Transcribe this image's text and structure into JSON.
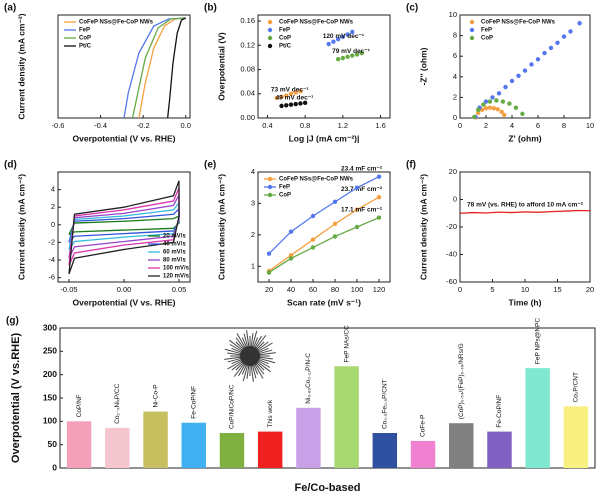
{
  "chart_data": [
    {
      "type": "line",
      "panel": "(a)",
      "xlabel": "Overpotential (V vs. RHE)",
      "ylabel": "Current density (mA cm⁻²)",
      "xlim": [
        -0.6,
        0.02
      ],
      "ylim": [
        -100,
        3
      ],
      "xticks": [
        -0.6,
        -0.4,
        -0.2,
        {
          "value": 0,
          "label": "0.0"
        }
      ],
      "legend": "upper left",
      "series": [
        {
          "name": "CoFeP NSs@Fe-CoP NWs",
          "color": "#f5a040",
          "x": [
            0,
            -0.05,
            -0.1,
            -0.15,
            -0.19,
            -0.22
          ],
          "values": [
            0,
            -1,
            -8,
            -30,
            -65,
            -100
          ]
        },
        {
          "name": "FeP",
          "color": "#5577ee",
          "x": [
            0,
            -0.08,
            -0.15,
            -0.22,
            -0.27,
            -0.29
          ],
          "values": [
            0,
            -1,
            -8,
            -35,
            -75,
            -100
          ]
        },
        {
          "name": "CoP",
          "color": "#66aa44",
          "x": [
            0,
            -0.07,
            -0.13,
            -0.19,
            -0.23,
            -0.25
          ],
          "values": [
            0,
            -1,
            -10,
            -40,
            -80,
            -100
          ]
        },
        {
          "name": "Pt/C",
          "color": "#111111",
          "x": [
            0,
            -0.02,
            -0.04,
            -0.06,
            -0.075,
            -0.085
          ],
          "values": [
            0,
            -2,
            -15,
            -45,
            -80,
            -100
          ]
        }
      ]
    },
    {
      "type": "scatter",
      "panel": "(b)",
      "xlabel": "Log |J (mA cm⁻²)|",
      "ylabel": "Overpotential (V)",
      "xlim": [
        0.3,
        1.7
      ],
      "ylim": [
        0,
        0.17
      ],
      "xticks": [
        0.4,
        0.8,
        1.2,
        1.6
      ],
      "yticks": [
        {
          "value": 0,
          "label": "0.00"
        },
        0.04,
        0.08,
        0.12,
        0.16
      ],
      "legend": "upper left",
      "series": [
        {
          "name": "CoFeP NSs@Fe-CoP NWs",
          "color": "#f5a040",
          "label": "73 mV dec⁻¹",
          "x": [
            0.5,
            0.55,
            0.6,
            0.65,
            0.7,
            0.75
          ],
          "values": [
            0.033,
            0.035,
            0.037,
            0.04,
            0.042,
            0.044
          ]
        },
        {
          "name": "FeP",
          "color": "#5577ee",
          "label": "120 mV dec⁻¹",
          "x": [
            1.05,
            1.1,
            1.15,
            1.2,
            1.25,
            1.3
          ],
          "values": [
            0.122,
            0.126,
            0.13,
            0.134,
            0.138,
            0.142
          ]
        },
        {
          "name": "CoP",
          "color": "#66aa44",
          "label": "79 mV dec⁻¹",
          "x": [
            1.15,
            1.2,
            1.25,
            1.3,
            1.35,
            1.4
          ],
          "values": [
            0.097,
            0.099,
            0.101,
            0.103,
            0.105,
            0.107
          ]
        },
        {
          "name": "Pt/C",
          "color": "#111111",
          "label": "49 mV dec⁻¹",
          "x": [
            0.55,
            0.6,
            0.65,
            0.7,
            0.75,
            0.8
          ],
          "values": [
            0.02,
            0.021,
            0.022,
            0.023,
            0.024,
            0.025
          ]
        }
      ]
    },
    {
      "type": "scatter",
      "panel": "(c)",
      "xlabel": "Z' (ohm)",
      "ylabel": "-Z'' (ohm)",
      "xlim": [
        0,
        10
      ],
      "ylim": [
        0,
        10
      ],
      "xticks": [
        0,
        2,
        4,
        6,
        8,
        10
      ],
      "yticks": [
        0,
        2,
        4,
        6,
        8,
        10
      ],
      "legend": "upper left",
      "series": [
        {
          "name": "CoFeP NSs@Fe-CoP NWs",
          "color": "#f5a040",
          "x": [
            1.2,
            1.4,
            1.7,
            2.0,
            2.3,
            2.6,
            2.9,
            3.2,
            3.4
          ],
          "values": [
            0.05,
            0.5,
            0.8,
            0.95,
            1.0,
            0.95,
            0.85,
            0.6,
            0.3
          ]
        },
        {
          "name": "FeP",
          "color": "#5577ee",
          "x": [
            1.2,
            1.5,
            2,
            2.5,
            3,
            3.5,
            4,
            4.5,
            5,
            5.5,
            6,
            6.5,
            7,
            7.5,
            8,
            8.5,
            9.2
          ],
          "values": [
            0.1,
            1.0,
            1.6,
            2.0,
            2.4,
            3.0,
            3.6,
            4.1,
            4.6,
            5.2,
            5.7,
            6.3,
            6.8,
            7.3,
            7.9,
            8.4,
            9.2
          ]
        },
        {
          "name": "CoP",
          "color": "#66aa44",
          "x": [
            1.1,
            1.4,
            1.8,
            2.3,
            2.8,
            3.3,
            3.8,
            4.3,
            4.8
          ],
          "values": [
            0.1,
            0.8,
            1.3,
            1.6,
            1.7,
            1.6,
            1.4,
            1.0,
            0.4
          ]
        }
      ]
    },
    {
      "type": "line",
      "panel": "(d)",
      "xlabel": "Overpotential (V vs. RHE)",
      "ylabel": "Current density (mA cm⁻²)",
      "xlim": [
        -0.06,
        0.06
      ],
      "ylim": [
        -6.5,
        6
      ],
      "xticks": [
        -0.05,
        {
          "value": 0,
          "label": "0.00"
        },
        0.05
      ],
      "yticks": [
        -6,
        -4,
        -2,
        0,
        2,
        4
      ],
      "legend": "lower right",
      "x": [
        -0.05,
        -0.045,
        0,
        0.045,
        0.05,
        0.05,
        0.045,
        0,
        -0.045,
        -0.05
      ],
      "series": [
        {
          "name": "20 mV/s",
          "color": "#1a7a1a",
          "values": [
            -1.1,
            0.2,
            0.4,
            0.7,
            1.0,
            0.2,
            -0.4,
            -0.6,
            -0.8,
            -1.1
          ]
        },
        {
          "name": "40 mV/s",
          "color": "#3355dd",
          "values": [
            -2.0,
            0.4,
            0.7,
            1.2,
            1.8,
            0.4,
            -0.7,
            -1.0,
            -1.3,
            -2.0
          ]
        },
        {
          "name": "60 mV/s",
          "color": "#33bbdd",
          "values": [
            -2.8,
            0.6,
            1.0,
            1.7,
            2.5,
            0.5,
            -1.0,
            -1.4,
            -1.9,
            -2.8
          ]
        },
        {
          "name": "80 mV/s",
          "color": "#9944cc",
          "values": [
            -3.8,
            0.8,
            1.3,
            2.2,
            3.4,
            0.7,
            -1.3,
            -1.9,
            -2.5,
            -3.8
          ]
        },
        {
          "name": "100 mV/s",
          "color": "#dd33aa",
          "values": [
            -4.6,
            1.0,
            1.7,
            2.7,
            4.2,
            0.8,
            -1.7,
            -2.3,
            -3.2,
            -4.6
          ]
        },
        {
          "name": "120 mV/s",
          "color": "#222222",
          "values": [
            -5.6,
            1.2,
            2.0,
            3.3,
            5.0,
            1.0,
            -2.0,
            -2.8,
            -3.8,
            -5.6
          ]
        }
      ]
    },
    {
      "type": "line",
      "panel": "(e)",
      "xlabel": "Scan rate (mV s⁻¹)",
      "ylabel": "Current density (mA cm⁻²)",
      "xlim": [
        10,
        130
      ],
      "ylim": [
        0.5,
        4
      ],
      "xticks": [
        20,
        40,
        60,
        80,
        100,
        120
      ],
      "yticks": [
        1,
        2,
        3,
        4
      ],
      "legend": "upper left",
      "markers": true,
      "x": [
        20,
        40,
        60,
        80,
        100,
        120
      ],
      "series": [
        {
          "name": "CoFeP NSs@Fe-CoP NWs",
          "color": "#f5a040",
          "label": "23.7 mF cm⁻²",
          "values": [
            0.85,
            1.35,
            1.85,
            2.35,
            2.8,
            3.2
          ]
        },
        {
          "name": "FeP",
          "color": "#5577ee",
          "label": "23.4 mF cm⁻²",
          "values": [
            1.4,
            2.1,
            2.6,
            3.05,
            3.5,
            3.85
          ]
        },
        {
          "name": "CoP",
          "color": "#66aa44",
          "label": "17.1 mF cm⁻²",
          "values": [
            0.8,
            1.25,
            1.6,
            1.95,
            2.25,
            2.55
          ]
        }
      ]
    },
    {
      "type": "line",
      "panel": "(f)",
      "xlabel": "Time (h)",
      "ylabel": "Current density (mA cm⁻²)",
      "xlim": [
        0,
        20
      ],
      "ylim": [
        -60,
        20
      ],
      "xticks": [
        0,
        5,
        10,
        15,
        20
      ],
      "yticks": [
        -60,
        -40,
        -20,
        0,
        20
      ],
      "annotation": "78 mV (vs. RHE) to afford 10 mA cm⁻²",
      "x": [
        0,
        2,
        4,
        6,
        8,
        10,
        12,
        14,
        16,
        18,
        20
      ],
      "series": [
        {
          "color": "#e82020",
          "values": [
            -10,
            -9.5,
            -9.8,
            -9.2,
            -9.5,
            -9,
            -9.3,
            -8.8,
            -8.5,
            -8,
            -8.2
          ]
        }
      ]
    },
    {
      "type": "bar",
      "panel": "(g)",
      "xlabel": "Fe/Co-based",
      "ylabel": "Overpotential (V vs.RHE)",
      "ylim": [
        0,
        300
      ],
      "yticks": [
        0,
        50,
        100,
        150,
        200,
        250,
        300
      ],
      "categories": [
        "CoP/NF",
        "Co₂₋ₓNiₓP/CC",
        "Ni-Co-P",
        "Fe-CoP/NF",
        "CoP/NiCoP/NC",
        "This work",
        "Ni₀.₈₉Co₀.₁₁P/N-C",
        "FeP NAs/CC",
        "Co₀.₅Fe₀.₅P/CNT",
        "CoFe-P",
        "(CoP)₀.₅₄/(FeP)₀.₄₆/NRs/G",
        "Fe-CoP/NF",
        "FeP NPs@NPC",
        "Co₂P/CNT"
      ],
      "values": [
        100,
        86,
        121,
        97,
        75,
        78,
        129,
        218,
        75,
        58,
        96,
        78,
        214,
        132
      ],
      "colors": [
        "#f3a0b8",
        "#f4c6d0",
        "#c8c060",
        "#40b0f0",
        "#80b040",
        "#ee2020",
        "#c8a0e8",
        "#a8d870",
        "#3050a0",
        "#f080d0",
        "#808080",
        "#8060c0",
        "#80e8d0",
        "#f8f080"
      ]
    }
  ]
}
